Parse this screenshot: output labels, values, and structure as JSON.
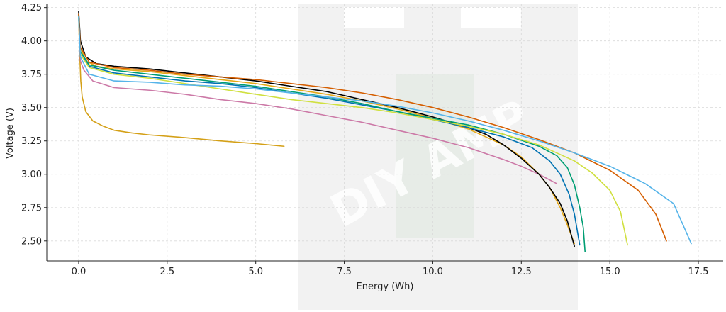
{
  "chart_data": {
    "type": "line",
    "xlabel": "Energy (Wh)",
    "ylabel": "Voltage (V)",
    "xlim": [
      -0.9,
      18.2
    ],
    "ylim": [
      2.35,
      4.28
    ],
    "xticks": [
      0.0,
      2.5,
      5.0,
      7.5,
      10.0,
      12.5,
      15.0,
      17.5
    ],
    "xtick_labels": [
      "0.0",
      "2.5",
      "5.0",
      "7.5",
      "10.0",
      "12.5",
      "15.0",
      "17.5"
    ],
    "yticks": [
      2.5,
      2.75,
      3.0,
      3.25,
      3.5,
      3.75,
      4.0,
      4.25
    ],
    "ytick_labels": [
      "2.50",
      "2.75",
      "3.00",
      "3.25",
      "3.50",
      "3.75",
      "4.00",
      "4.25"
    ],
    "grid": true,
    "watermark": {
      "text": "DIY AMP",
      "color": "#e8e8e8"
    },
    "series": [
      {
        "color": "#d4a017",
        "points": [
          [
            0.0,
            4.18
          ],
          [
            0.03,
            3.9
          ],
          [
            0.06,
            3.7
          ],
          [
            0.1,
            3.58
          ],
          [
            0.2,
            3.47
          ],
          [
            0.4,
            3.4
          ],
          [
            0.7,
            3.36
          ],
          [
            1.0,
            3.33
          ],
          [
            1.5,
            3.31
          ],
          [
            2.0,
            3.295
          ],
          [
            3.0,
            3.275
          ],
          [
            4.0,
            3.25
          ],
          [
            5.0,
            3.23
          ],
          [
            5.8,
            3.21
          ]
        ]
      },
      {
        "color": "#cc79a7",
        "points": [
          [
            0.0,
            4.18
          ],
          [
            0.05,
            3.85
          ],
          [
            0.15,
            3.78
          ],
          [
            0.4,
            3.7
          ],
          [
            1.0,
            3.65
          ],
          [
            2.0,
            3.63
          ],
          [
            3.0,
            3.6
          ],
          [
            4.0,
            3.56
          ],
          [
            5.0,
            3.53
          ],
          [
            6.0,
            3.49
          ],
          [
            7.0,
            3.44
          ],
          [
            8.0,
            3.39
          ],
          [
            9.0,
            3.33
          ],
          [
            10.0,
            3.27
          ],
          [
            11.0,
            3.2
          ],
          [
            12.0,
            3.11
          ],
          [
            12.5,
            3.06
          ],
          [
            13.0,
            3.0
          ],
          [
            13.5,
            2.93
          ]
        ]
      },
      {
        "color": "#e6a817",
        "points": [
          [
            0.0,
            4.2
          ],
          [
            0.05,
            3.95
          ],
          [
            0.2,
            3.85
          ],
          [
            0.5,
            3.81
          ],
          [
            1.0,
            3.79
          ],
          [
            2.0,
            3.77
          ],
          [
            3.0,
            3.74
          ],
          [
            4.0,
            3.71
          ],
          [
            5.0,
            3.68
          ],
          [
            6.0,
            3.64
          ],
          [
            7.0,
            3.6
          ],
          [
            8.0,
            3.55
          ],
          [
            9.0,
            3.49
          ],
          [
            10.0,
            3.42
          ],
          [
            11.0,
            3.34
          ],
          [
            12.0,
            3.22
          ],
          [
            12.5,
            3.13
          ],
          [
            13.0,
            3.0
          ],
          [
            13.3,
            2.9
          ],
          [
            13.6,
            2.75
          ],
          [
            13.8,
            2.62
          ],
          [
            14.0,
            2.48
          ]
        ]
      },
      {
        "color": "#000000",
        "points": [
          [
            0.0,
            4.22
          ],
          [
            0.05,
            4.0
          ],
          [
            0.2,
            3.88
          ],
          [
            0.5,
            3.83
          ],
          [
            1.0,
            3.81
          ],
          [
            2.0,
            3.79
          ],
          [
            3.0,
            3.76
          ],
          [
            4.0,
            3.73
          ],
          [
            5.0,
            3.7
          ],
          [
            6.0,
            3.66
          ],
          [
            7.0,
            3.62
          ],
          [
            8.0,
            3.56
          ],
          [
            9.0,
            3.5
          ],
          [
            10.0,
            3.43
          ],
          [
            11.0,
            3.35
          ],
          [
            11.5,
            3.3
          ],
          [
            12.0,
            3.22
          ],
          [
            12.5,
            3.12
          ],
          [
            13.0,
            3.0
          ],
          [
            13.3,
            2.9
          ],
          [
            13.6,
            2.78
          ],
          [
            13.8,
            2.65
          ],
          [
            14.0,
            2.46
          ]
        ]
      },
      {
        "color": "#0072b2",
        "points": [
          [
            0.0,
            4.2
          ],
          [
            0.05,
            3.92
          ],
          [
            0.3,
            3.81
          ],
          [
            1.0,
            3.76
          ],
          [
            2.0,
            3.73
          ],
          [
            3.0,
            3.7
          ],
          [
            4.0,
            3.68
          ],
          [
            5.0,
            3.65
          ],
          [
            6.0,
            3.61
          ],
          [
            7.0,
            3.57
          ],
          [
            8.0,
            3.52
          ],
          [
            9.0,
            3.47
          ],
          [
            10.0,
            3.41
          ],
          [
            11.0,
            3.35
          ],
          [
            12.0,
            3.28
          ],
          [
            12.8,
            3.2
          ],
          [
            13.3,
            3.1
          ],
          [
            13.6,
            3.0
          ],
          [
            13.85,
            2.85
          ],
          [
            14.0,
            2.7
          ],
          [
            14.15,
            2.47
          ]
        ]
      },
      {
        "color": "#009e73",
        "points": [
          [
            0.0,
            4.18
          ],
          [
            0.05,
            3.92
          ],
          [
            0.3,
            3.82
          ],
          [
            1.0,
            3.78
          ],
          [
            2.0,
            3.75
          ],
          [
            3.0,
            3.72
          ],
          [
            4.0,
            3.69
          ],
          [
            5.0,
            3.66
          ],
          [
            6.0,
            3.62
          ],
          [
            7.0,
            3.58
          ],
          [
            8.0,
            3.53
          ],
          [
            9.0,
            3.47
          ],
          [
            10.0,
            3.42
          ],
          [
            11.0,
            3.37
          ],
          [
            12.0,
            3.3
          ],
          [
            13.0,
            3.21
          ],
          [
            13.5,
            3.14
          ],
          [
            13.8,
            3.05
          ],
          [
            14.0,
            2.92
          ],
          [
            14.15,
            2.75
          ],
          [
            14.25,
            2.6
          ],
          [
            14.3,
            2.42
          ]
        ]
      },
      {
        "color": "#d0e040",
        "points": [
          [
            0.0,
            4.18
          ],
          [
            0.05,
            3.9
          ],
          [
            0.3,
            3.8
          ],
          [
            1.0,
            3.75
          ],
          [
            2.0,
            3.72
          ],
          [
            3.0,
            3.68
          ],
          [
            4.0,
            3.64
          ],
          [
            5.0,
            3.6
          ],
          [
            6.0,
            3.56
          ],
          [
            7.0,
            3.53
          ],
          [
            8.0,
            3.5
          ],
          [
            9.0,
            3.46
          ],
          [
            10.0,
            3.41
          ],
          [
            11.0,
            3.36
          ],
          [
            12.0,
            3.3
          ],
          [
            13.0,
            3.22
          ],
          [
            14.0,
            3.1
          ],
          [
            14.5,
            3.01
          ],
          [
            15.0,
            2.88
          ],
          [
            15.3,
            2.72
          ],
          [
            15.5,
            2.47
          ]
        ]
      },
      {
        "color": "#d55e00",
        "points": [
          [
            0.0,
            4.2
          ],
          [
            0.05,
            3.95
          ],
          [
            0.3,
            3.84
          ],
          [
            1.0,
            3.8
          ],
          [
            2.0,
            3.78
          ],
          [
            3.0,
            3.75
          ],
          [
            4.0,
            3.73
          ],
          [
            5.0,
            3.71
          ],
          [
            6.0,
            3.68
          ],
          [
            7.0,
            3.65
          ],
          [
            8.0,
            3.61
          ],
          [
            9.0,
            3.56
          ],
          [
            10.0,
            3.5
          ],
          [
            11.0,
            3.43
          ],
          [
            12.0,
            3.35
          ],
          [
            13.0,
            3.26
          ],
          [
            14.0,
            3.16
          ],
          [
            15.0,
            3.03
          ],
          [
            15.8,
            2.88
          ],
          [
            16.3,
            2.7
          ],
          [
            16.6,
            2.5
          ]
        ]
      },
      {
        "color": "#56b4e9",
        "points": [
          [
            0.0,
            4.18
          ],
          [
            0.05,
            3.88
          ],
          [
            0.3,
            3.75
          ],
          [
            1.0,
            3.7
          ],
          [
            2.0,
            3.69
          ],
          [
            3.0,
            3.67
          ],
          [
            4.0,
            3.66
          ],
          [
            5.0,
            3.64
          ],
          [
            6.0,
            3.61
          ],
          [
            7.0,
            3.58
          ],
          [
            8.0,
            3.55
          ],
          [
            9.0,
            3.51
          ],
          [
            10.0,
            3.46
          ],
          [
            11.0,
            3.4
          ],
          [
            12.0,
            3.33
          ],
          [
            13.0,
            3.25
          ],
          [
            14.0,
            3.16
          ],
          [
            15.0,
            3.06
          ],
          [
            16.0,
            2.93
          ],
          [
            16.8,
            2.78
          ],
          [
            17.3,
            2.48
          ]
        ]
      }
    ]
  }
}
